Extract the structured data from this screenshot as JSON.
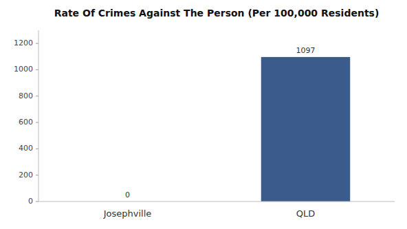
{
  "chart_data": {
    "type": "bar",
    "title": "Rate Of Crimes Against The Person (Per 100,000 Residents)",
    "categories": [
      "Josephville",
      "QLD"
    ],
    "values": [
      0,
      1097
    ],
    "color": "#3a5b8c",
    "ylim": [
      0,
      1300
    ],
    "yticks": [
      0,
      200,
      400,
      600,
      800,
      1000,
      1200
    ],
    "grid": false,
    "data_labels": true
  }
}
